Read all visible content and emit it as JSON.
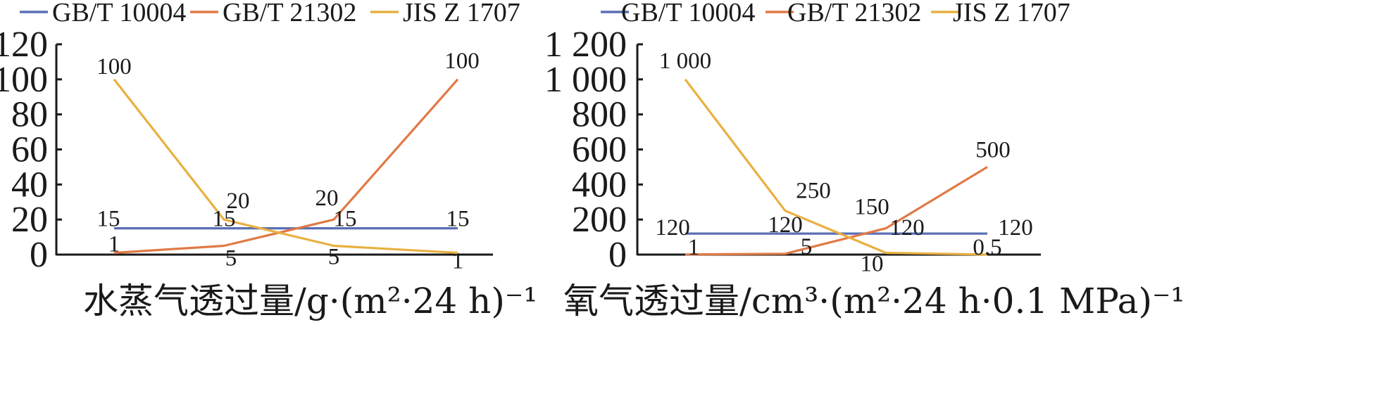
{
  "chart_data": [
    {
      "type": "line",
      "x": [
        "",
        "",
        "",
        ""
      ],
      "ylim": [
        0,
        120
      ],
      "yticks": [
        0,
        20,
        40,
        60,
        80,
        100,
        120
      ],
      "ytick_labels": [
        "0",
        "20",
        "40",
        "60",
        "80",
        "100",
        "120"
      ],
      "xlabel": "水蒸气透过量/g·(m²·24 h)⁻¹",
      "legend": "top",
      "grid": false,
      "series": [
        {
          "name": "GB/T 10004",
          "color": "#5b6fb5",
          "values": [
            15,
            15,
            15,
            15
          ],
          "labels": [
            "15",
            "15",
            "15",
            "15"
          ]
        },
        {
          "name": "GB/T 21302",
          "color": "#e07a45",
          "values": [
            1,
            5,
            20,
            100
          ],
          "labels": [
            "1",
            "5",
            "20",
            "100"
          ]
        },
        {
          "name": "JIS Z 1707",
          "color": "#e8b040",
          "values": [
            100,
            20,
            5,
            1
          ],
          "labels": [
            "100",
            "20",
            "5",
            "1"
          ]
        }
      ]
    },
    {
      "type": "line",
      "x": [
        "",
        "",
        "",
        ""
      ],
      "ylim": [
        0,
        1200
      ],
      "yticks": [
        0,
        200,
        400,
        600,
        800,
        1000,
        1200
      ],
      "ytick_labels": [
        "0",
        "200",
        "400",
        "600",
        "800",
        "1 000",
        "1 200"
      ],
      "xlabel": "氧气透过量/cm³·(m²·24 h·0.1 MPa)⁻¹",
      "legend": "top",
      "grid": false,
      "series": [
        {
          "name": "GB/T 10004",
          "color": "#5b6fb5",
          "values": [
            120,
            120,
            120,
            120
          ],
          "labels": [
            "120",
            "120",
            "120",
            "120"
          ]
        },
        {
          "name": "GB/T 21302",
          "color": "#e07a45",
          "values": [
            1,
            5,
            150,
            500
          ],
          "labels": [
            "1",
            "5",
            "150",
            "500"
          ]
        },
        {
          "name": "JIS Z 1707",
          "color": "#e8b040",
          "values": [
            1000,
            250,
            10,
            0.5
          ],
          "labels": [
            "1 000",
            "250",
            "10",
            "0.5"
          ]
        }
      ]
    }
  ]
}
